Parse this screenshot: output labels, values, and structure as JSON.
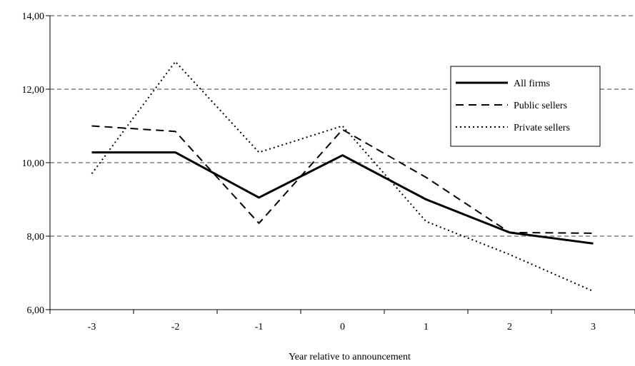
{
  "chart_data": {
    "type": "line",
    "title": "",
    "xlabel": "Year relative to announcement",
    "ylabel": "",
    "categories": [
      "-3",
      "-2",
      "-1",
      "0",
      "1",
      "2",
      "3"
    ],
    "ylim": [
      6,
      14
    ],
    "yticks": [
      "6,00",
      "8,00",
      "10,00",
      "12,00",
      "14,00"
    ],
    "grid": "horizontal dashed",
    "legend_position": "top-right",
    "series": [
      {
        "name": "All firms",
        "style": "solid",
        "color": "#000000",
        "values": [
          10.28,
          10.28,
          9.05,
          10.2,
          9.0,
          8.1,
          7.8
        ]
      },
      {
        "name": "Public sellers",
        "style": "dashed",
        "color": "#000000",
        "values": [
          11.0,
          10.85,
          8.35,
          10.9,
          9.6,
          8.1,
          8.08
        ]
      },
      {
        "name": "Private sellers",
        "style": "dotted",
        "color": "#000000",
        "values": [
          9.7,
          12.75,
          10.28,
          11.0,
          8.4,
          7.5,
          6.5
        ]
      }
    ]
  }
}
